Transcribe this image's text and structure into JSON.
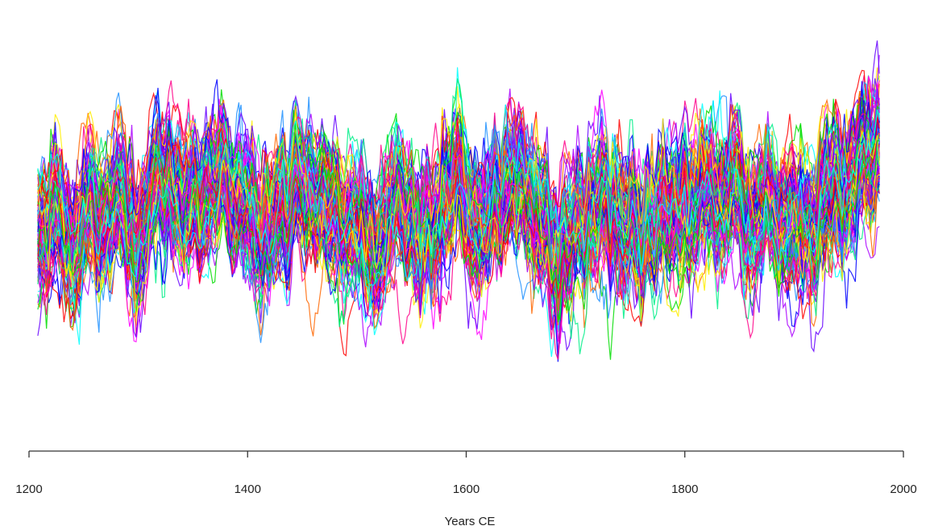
{
  "chart_data": {
    "type": "line",
    "title": "",
    "xlabel": "Years CE",
    "ylabel": "",
    "xlim": [
      1200,
      2000
    ],
    "xticks": [
      "1200",
      "1400",
      "1600",
      "1800",
      "2000"
    ],
    "x_data_range": [
      1208,
      1978
    ],
    "y_axis_shown": false,
    "grid": false,
    "legend": "none",
    "series_count": 150,
    "series_colors": [
      "#ff0000",
      "#ff6600",
      "#ffee00",
      "#00dd00",
      "#00ee88",
      "#00ffff",
      "#1e90ff",
      "#0000ff",
      "#6600ff",
      "#aa00ff",
      "#ff00ff",
      "#ff0088"
    ],
    "description_of_series": "ensemble of reconstructions"
  }
}
